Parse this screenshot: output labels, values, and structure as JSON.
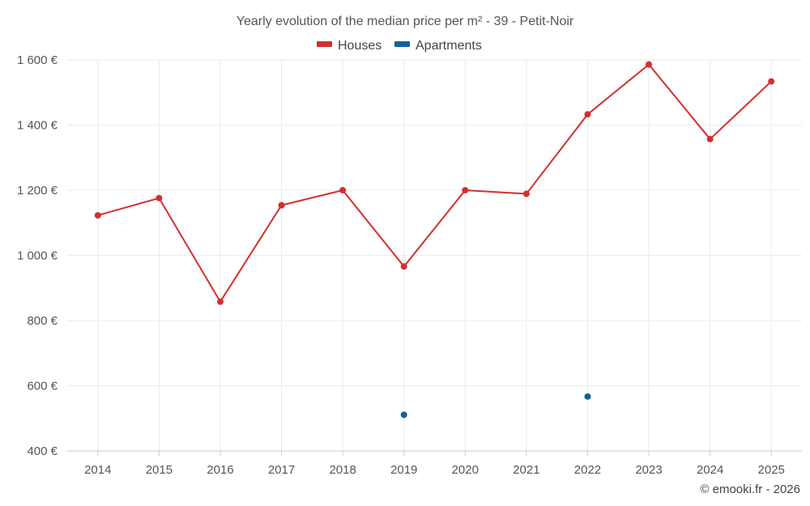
{
  "chart_data": {
    "type": "line",
    "title": "Yearly evolution of the median price per m² - 39 - Petit-Noir",
    "categories": [
      "2014",
      "2015",
      "2016",
      "2017",
      "2018",
      "2019",
      "2020",
      "2021",
      "2022",
      "2023",
      "2024",
      "2025"
    ],
    "ylim": [
      400,
      1600
    ],
    "yticks": [
      400,
      600,
      800,
      1000,
      1200,
      1400,
      1600
    ],
    "ytick_labels": [
      "400 €",
      "600 €",
      "800 €",
      "1 000 €",
      "1 200 €",
      "1 400 €",
      "1 600 €"
    ],
    "grid": true,
    "legend_position": "top-center",
    "series": [
      {
        "name": "Houses",
        "color": "#d32f2f",
        "values": [
          1123,
          1176,
          858,
          1154,
          1200,
          966,
          1200,
          1189,
          1433,
          1586,
          1357,
          1534
        ]
      },
      {
        "name": "Apartments",
        "color": "#0e639c",
        "values": [
          null,
          null,
          null,
          null,
          null,
          511,
          null,
          null,
          567,
          null,
          null,
          null
        ]
      }
    ],
    "credit": "© emooki.fr - 2026"
  }
}
